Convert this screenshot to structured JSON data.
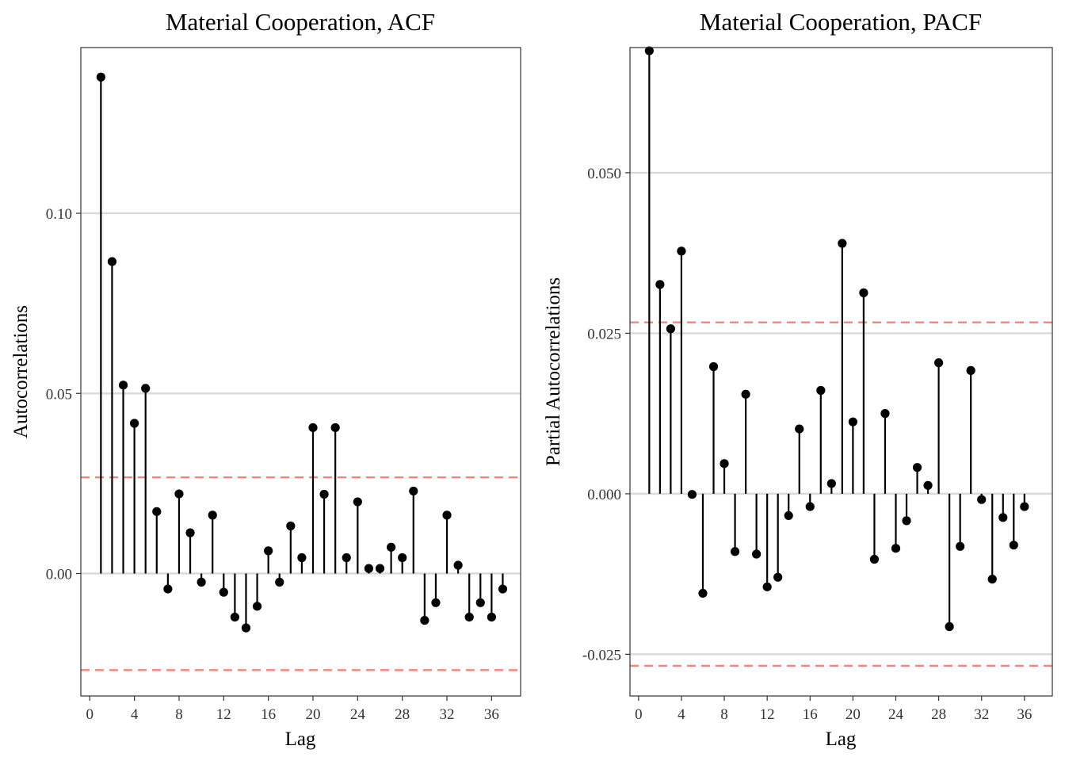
{
  "chart_data": [
    {
      "type": "lollipop",
      "title": "Material Cooperation, ACF",
      "xlabel": "Lag",
      "ylabel": "Autocorrelations",
      "xlim": [
        -0.8,
        38.6
      ],
      "ylim": [
        -0.034,
        0.146
      ],
      "xticks": [
        0,
        4,
        8,
        12,
        16,
        20,
        24,
        28,
        32,
        36
      ],
      "yticks": [
        0.0,
        0.05,
        0.1
      ],
      "ytick_labels": [
        "0.00",
        "0.05",
        "0.10"
      ],
      "confidence_bounds": [
        0.0267,
        -0.0268
      ],
      "grid": true,
      "x": [
        1,
        2,
        3,
        4,
        5,
        6,
        7,
        8,
        9,
        10,
        11,
        12,
        13,
        14,
        15,
        16,
        17,
        18,
        19,
        20,
        21,
        22,
        23,
        24,
        25,
        26,
        27,
        28,
        29,
        30,
        31,
        32,
        33,
        34,
        35,
        36,
        37
      ],
      "values": [
        0.1378,
        0.0866,
        0.0523,
        0.0417,
        0.0514,
        0.0172,
        -0.0043,
        0.0221,
        0.0113,
        -0.0024,
        0.0162,
        -0.0052,
        -0.0121,
        -0.0151,
        -0.0091,
        0.0063,
        -0.0024,
        0.0132,
        0.0044,
        0.0405,
        0.022,
        0.0405,
        0.0044,
        0.0199,
        0.0014,
        0.0014,
        0.0073,
        0.0044,
        0.0229,
        -0.013,
        -0.0081,
        0.0162,
        0.0023,
        -0.0121,
        -0.0081,
        -0.0121,
        -0.0043
      ]
    },
    {
      "type": "lollipop",
      "title": "Material Cooperation, PACF",
      "xlabel": "Lag",
      "ylabel": "Partial Autocorrelations",
      "xlim": [
        -0.8,
        38.6
      ],
      "ylim": [
        -0.0315,
        0.0695
      ],
      "xticks": [
        0,
        4,
        8,
        12,
        16,
        20,
        24,
        28,
        32,
        36
      ],
      "yticks": [
        -0.025,
        0.0,
        0.025,
        0.05
      ],
      "ytick_labels": [
        "-0.025",
        "0.000",
        "0.025",
        "0.050"
      ],
      "confidence_bounds": [
        0.0267,
        -0.0268
      ],
      "grid": true,
      "x": [
        1,
        2,
        3,
        4,
        5,
        6,
        7,
        8,
        9,
        10,
        11,
        12,
        13,
        14,
        15,
        16,
        17,
        18,
        19,
        20,
        21,
        22,
        23,
        24,
        25,
        26,
        27,
        28,
        29,
        30,
        31,
        32,
        33,
        34,
        35,
        36
      ],
      "values": [
        0.069,
        0.0326,
        0.0257,
        0.0378,
        -0.0001,
        -0.0155,
        0.0198,
        0.0047,
        -0.009,
        0.0155,
        -0.0094,
        -0.0145,
        -0.013,
        -0.0034,
        0.0101,
        -0.002,
        0.0161,
        0.0016,
        0.039,
        0.0112,
        0.0313,
        -0.0102,
        0.0125,
        -0.0085,
        -0.0042,
        0.0041,
        0.0013,
        0.0204,
        -0.0207,
        -0.0082,
        0.0192,
        -0.0009,
        -0.0133,
        -0.0037,
        -0.008,
        -0.002
      ]
    }
  ]
}
